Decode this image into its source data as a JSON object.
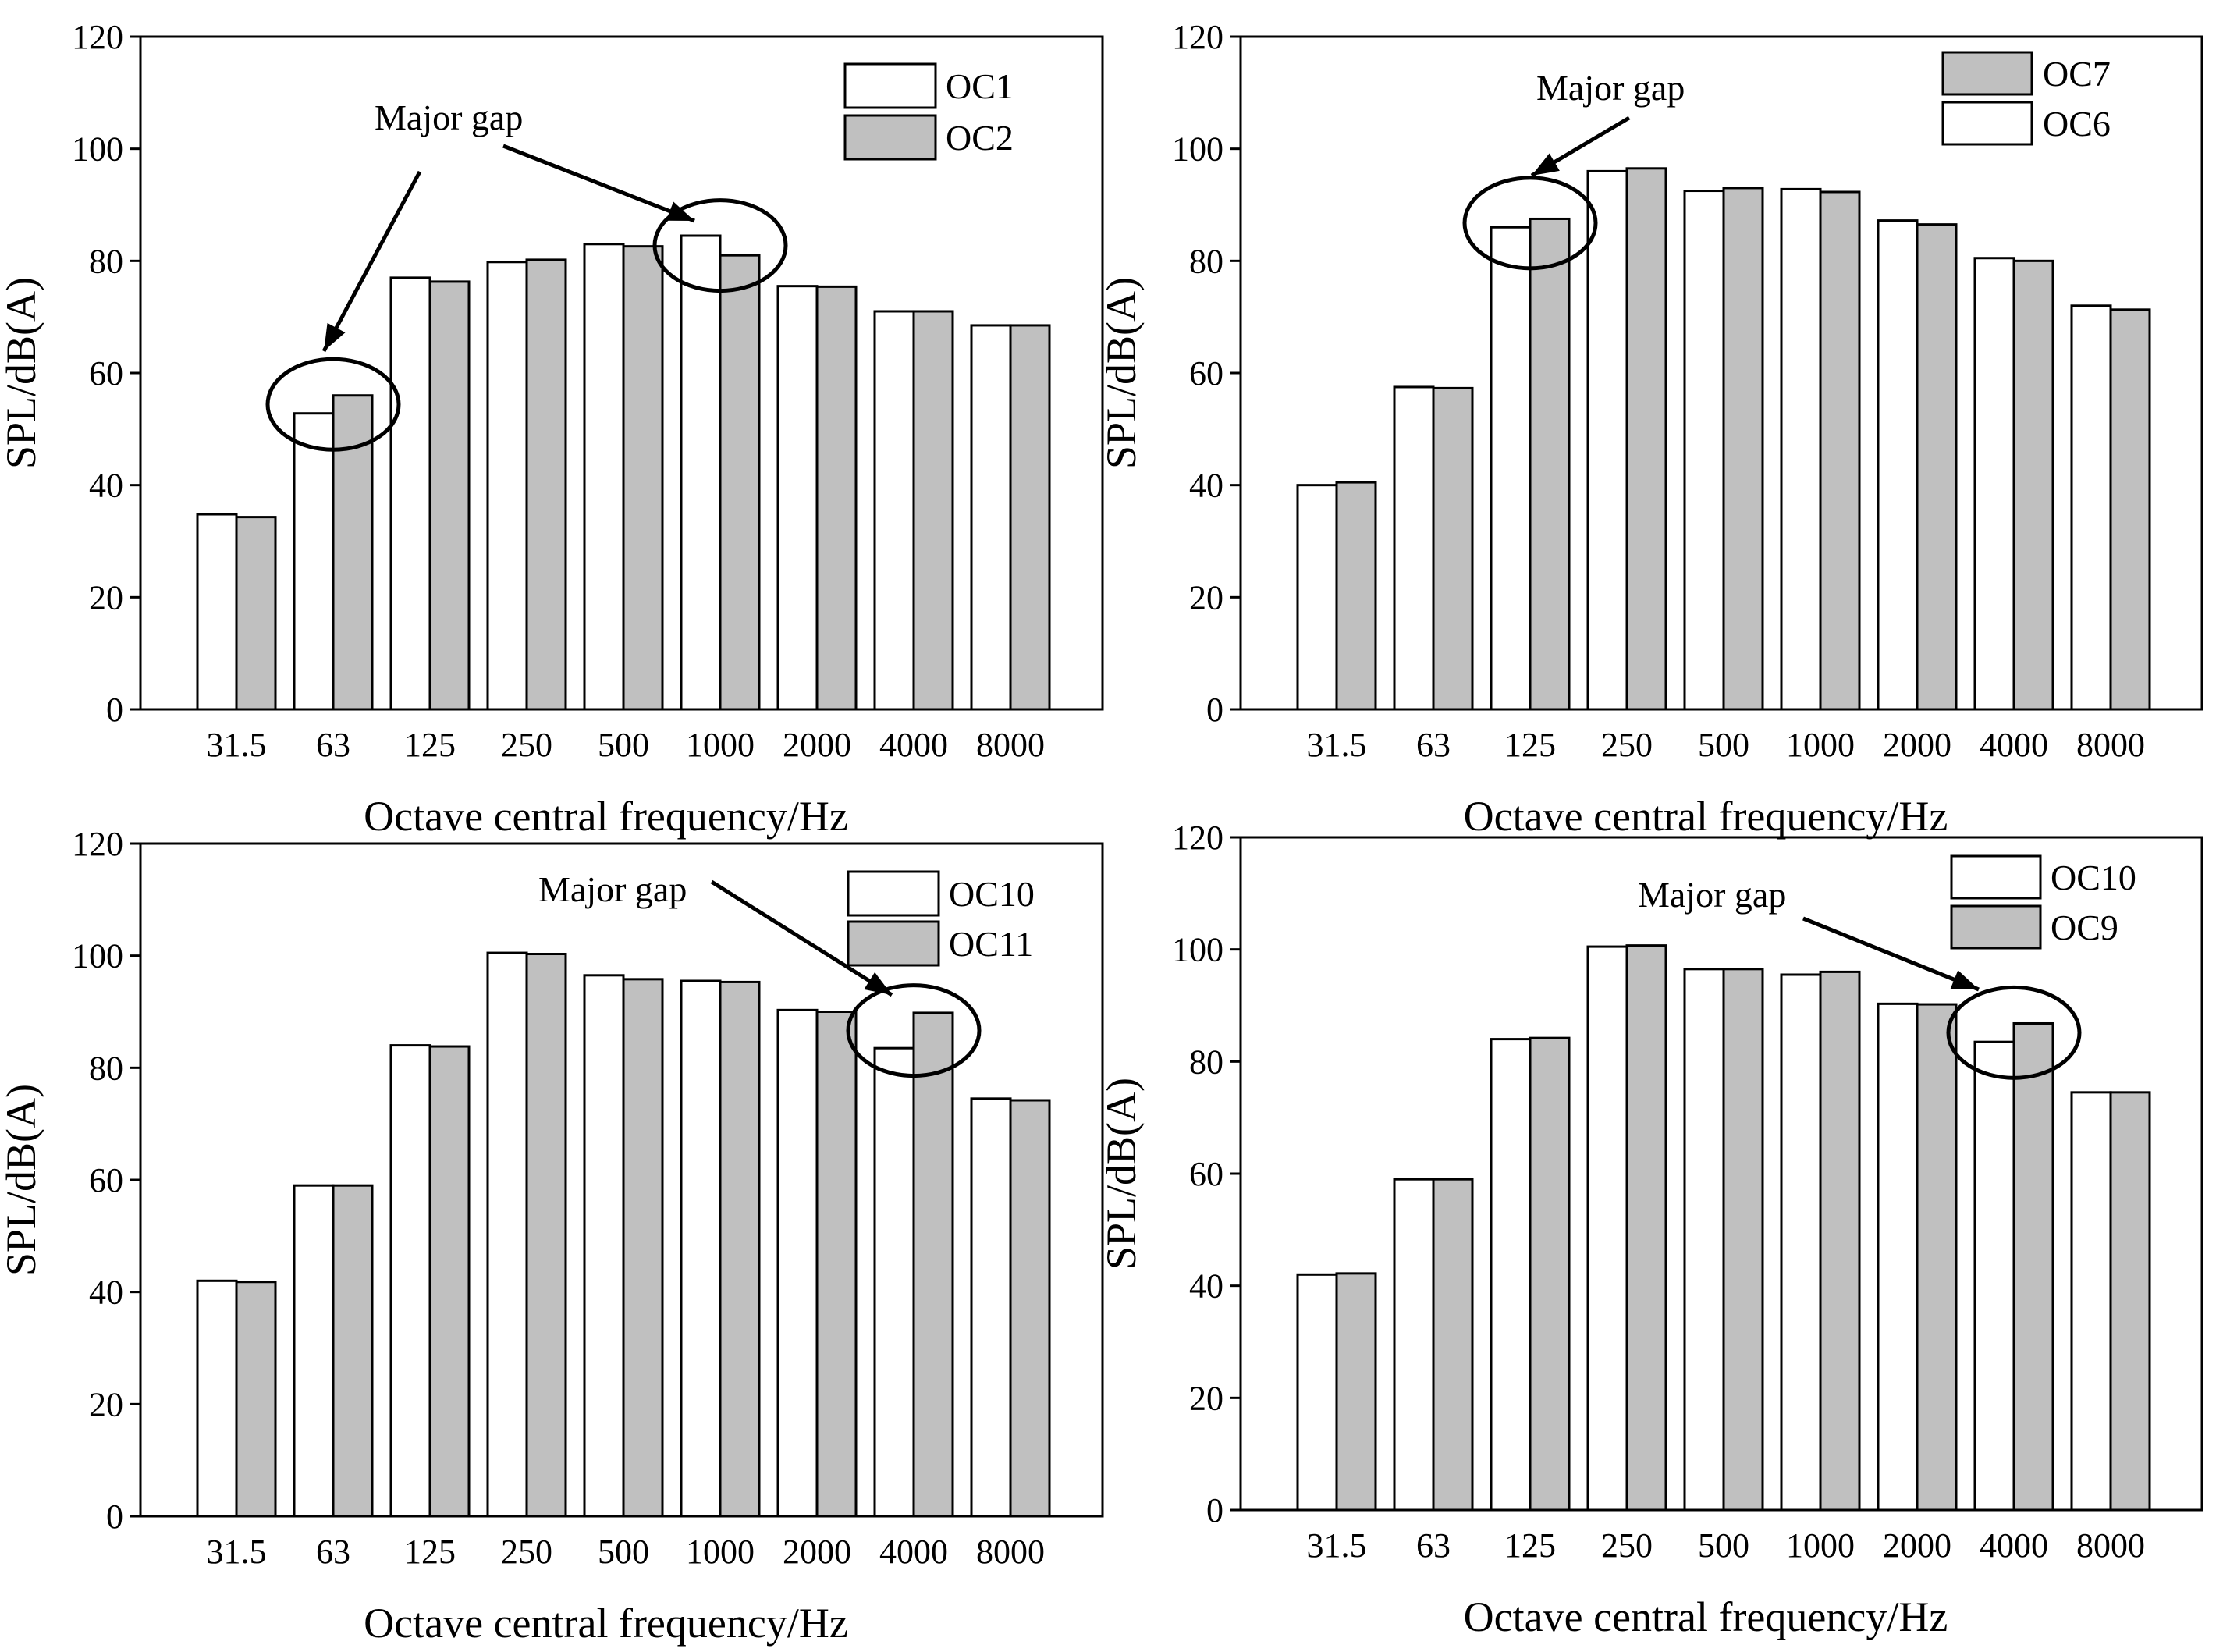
{
  "chart_data": [
    {
      "type": "bar",
      "title": "",
      "categories": [
        "31.5",
        "63",
        "125",
        "250",
        "500",
        "1000",
        "2000",
        "4000",
        "8000"
      ],
      "series": [
        {
          "name": "OC1",
          "color": "#ffffff",
          "values": [
            34.8,
            52.8,
            77.0,
            79.8,
            83.0,
            84.5,
            75.5,
            71.0,
            68.5
          ]
        },
        {
          "name": "OC2",
          "color": "#c0c0c0",
          "values": [
            34.3,
            56.0,
            76.3,
            80.2,
            82.6,
            81.0,
            75.4,
            71.0,
            68.5
          ]
        }
      ],
      "xlabel": "Octave central frequency/Hz",
      "ylabel": "SPL/dB(A)",
      "ylim": [
        0,
        120
      ],
      "yticks": [
        0,
        20,
        40,
        60,
        80,
        100,
        120
      ],
      "legend": "top-right",
      "annotation": {
        "text": "Major gap",
        "targets": [
          "63",
          "1000"
        ]
      }
    },
    {
      "type": "bar",
      "title": "",
      "categories": [
        "31.5",
        "63",
        "125",
        "250",
        "500",
        "1000",
        "2000",
        "4000",
        "8000"
      ],
      "series": [
        {
          "name": "OC7",
          "color": "#c0c0c0",
          "values": [
            40.5,
            57.3,
            87.5,
            96.5,
            93.0,
            92.3,
            86.5,
            80.0,
            71.3
          ]
        },
        {
          "name": "OC6",
          "color": "#ffffff",
          "values": [
            40.0,
            57.5,
            86.0,
            96.0,
            92.5,
            92.8,
            87.2,
            80.5,
            72.0
          ]
        }
      ],
      "bar_order": [
        "OC6",
        "OC7"
      ],
      "xlabel": "Octave central frequency/Hz",
      "ylabel": "SPL/dB(A)",
      "ylim": [
        0,
        120
      ],
      "yticks": [
        0,
        20,
        40,
        60,
        80,
        100,
        120
      ],
      "legend": "top-right",
      "annotation": {
        "text": "Major gap",
        "targets": [
          "125"
        ]
      }
    },
    {
      "type": "bar",
      "title": "",
      "categories": [
        "31.5",
        "63",
        "125",
        "250",
        "500",
        "1000",
        "2000",
        "4000",
        "8000"
      ],
      "series": [
        {
          "name": "OC10",
          "color": "#ffffff",
          "values": [
            42.0,
            59.0,
            84.0,
            100.5,
            96.5,
            95.5,
            90.3,
            83.5,
            74.5
          ]
        },
        {
          "name": "OC11",
          "color": "#c0c0c0",
          "values": [
            41.8,
            59.0,
            83.8,
            100.3,
            95.8,
            95.3,
            90.0,
            89.8,
            74.2
          ]
        }
      ],
      "xlabel": "Octave central frequency/Hz",
      "ylabel": "SPL/dB(A)",
      "ylim": [
        0,
        120
      ],
      "yticks": [
        0,
        20,
        40,
        60,
        80,
        100,
        120
      ],
      "legend": "top-right",
      "annotation": {
        "text": "Major gap",
        "targets": [
          "4000"
        ]
      }
    },
    {
      "type": "bar",
      "title": "",
      "categories": [
        "31.5",
        "63",
        "125",
        "250",
        "500",
        "1000",
        "2000",
        "4000",
        "8000"
      ],
      "series": [
        {
          "name": "OC10",
          "color": "#ffffff",
          "values": [
            42.0,
            59.0,
            84.0,
            100.5,
            96.5,
            95.5,
            90.3,
            83.5,
            74.5
          ]
        },
        {
          "name": "OC9",
          "color": "#c0c0c0",
          "values": [
            42.2,
            59.0,
            84.2,
            100.7,
            96.5,
            96.0,
            90.2,
            86.8,
            74.5
          ]
        }
      ],
      "xlabel": "Octave central frequency/Hz",
      "ylabel": "SPL/dB(A)",
      "ylim": [
        0,
        120
      ],
      "yticks": [
        0,
        20,
        40,
        60,
        80,
        100,
        120
      ],
      "legend": "top-right",
      "annotation": {
        "text": "Major gap",
        "targets": [
          "4000"
        ]
      }
    }
  ]
}
